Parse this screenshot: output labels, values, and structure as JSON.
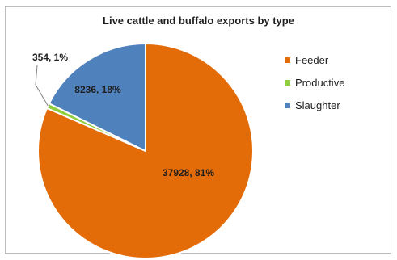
{
  "chart_data": {
    "type": "pie",
    "title": "Live cattle and buffalo exports by type",
    "legend_position": "right",
    "slices": [
      {
        "name": "Feeder",
        "value": 37928,
        "percent": 81,
        "label": "37928, 81%",
        "color": "#e36c09"
      },
      {
        "name": "Productive",
        "value": 354,
        "percent": 1,
        "label": "354, 1%",
        "color": "#8fce3c"
      },
      {
        "name": "Slaughter",
        "value": 8236,
        "percent": 18,
        "label": "8236, 18%",
        "color": "#4f81bd"
      }
    ]
  }
}
